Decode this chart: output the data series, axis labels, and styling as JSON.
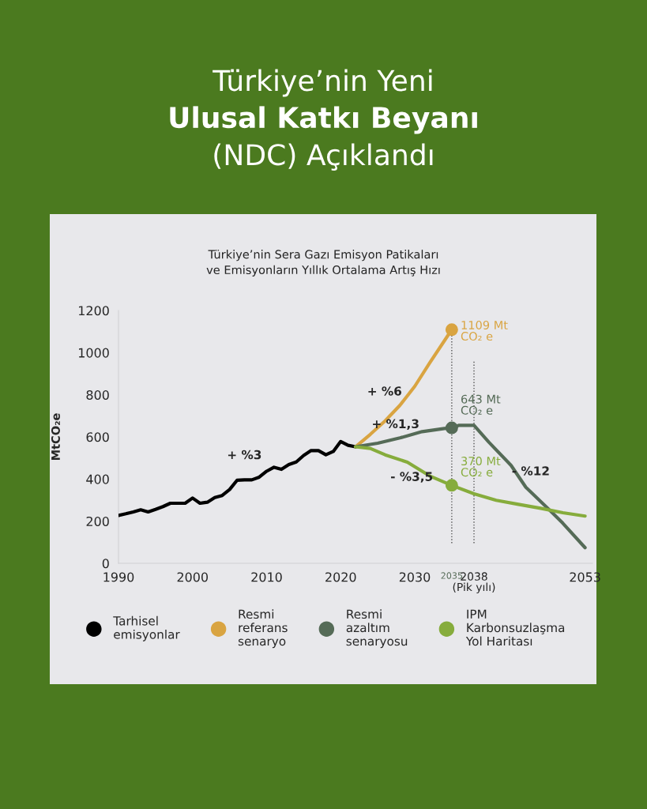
{
  "chart_data": {
    "type": "line",
    "title": "Türkiye’nin Yeni\nUlusal Katkı Beyanı\n(NDC) Açıklandı",
    "subtitle": "Türkiye’nin Sera Gazı Emisyon Patikaları\nve Emisyonların Yıllık Ortalama Artış Hızı",
    "ylabel": "MtCO₂e",
    "xlim": [
      1990,
      2054
    ],
    "ylim": [
      0,
      1200
    ],
    "xticks": [
      1990,
      2000,
      2010,
      2020,
      2030,
      2035,
      {
        "value": 2038,
        "label": "2038\n(Pik yılı)"
      },
      2053
    ],
    "yticks": [
      0,
      200,
      400,
      600,
      800,
      1000,
      1200
    ],
    "grid": false,
    "legend": "bottom",
    "line_style": "solid",
    "series": [
      {
        "name": "Tarhisel\nemisyonlar",
        "color": "#000000",
        "x": [
          1990,
          1991,
          1992,
          1993,
          1994,
          1995,
          1996,
          1997,
          1998,
          1999,
          2000,
          2001,
          2002,
          2003,
          2004,
          2005,
          2006,
          2007,
          2008,
          2009,
          2010,
          2011,
          2012,
          2013,
          2014,
          2015,
          2016,
          2017,
          2018,
          2019,
          2020,
          2021,
          2022
        ],
        "values": [
          227,
          235,
          244,
          254,
          244,
          256,
          269,
          285,
          285,
          285,
          310,
          285,
          290,
          312,
          322,
          350,
          394,
          396,
          396,
          409,
          437,
          456,
          446,
          469,
          481,
          512,
          535,
          535,
          515,
          531,
          578,
          560,
          553
        ]
      },
      {
        "name": "Resmi\nreferans\nsenaryo",
        "color": "#d9a441",
        "x": [
          2022,
          2024,
          2026,
          2028,
          2030,
          2032,
          2035
        ],
        "values": [
          553,
          612,
          676,
          750,
          840,
          950,
          1109
        ]
      },
      {
        "name": "Resmi\nazaltım\nsenaryosu",
        "color": "#556b57",
        "x": [
          2022,
          2025,
          2028,
          2031,
          2034,
          2035,
          2036,
          2038,
          2040,
          2043,
          2045,
          2048,
          2050,
          2053
        ],
        "values": [
          553,
          570,
          595,
          625,
          640,
          643,
          655,
          655,
          575,
          465,
          361,
          260,
          190,
          74
        ]
      },
      {
        "name": "IPM\nKarbonsuzlaşma\nYol Haritası",
        "color": "#86ac3c",
        "x": [
          2022,
          2024,
          2026,
          2029,
          2032,
          2035,
          2038,
          2041,
          2044,
          2047,
          2050,
          2053
        ],
        "values": [
          553,
          545,
          515,
          480,
          415,
          370,
          330,
          299,
          280,
          261,
          240,
          224
        ]
      },
      {
        "type": "scatter",
        "x": [
          2035,
          2035,
          2035
        ],
        "values": [
          1109,
          643,
          370
        ],
        "colors": [
          "#d9a441",
          "#556b57",
          "#86ac3c"
        ]
      }
    ],
    "ref_lines": [
      {
        "axis": "x",
        "value": 2035,
        "color": "#555555",
        "line_style": "dotted"
      },
      {
        "axis": "x",
        "value": 2038,
        "color": "#555555",
        "line_style": "dotted"
      }
    ],
    "annotations": [
      {
        "text": "+ %3",
        "x": 2007,
        "y": 396
      },
      {
        "text": "+ %6",
        "x": 2028,
        "y": 750
      },
      {
        "text": "+ %1,3",
        "x": 2028,
        "y": 595
      },
      {
        "text": "- %3,5",
        "x": 2029,
        "y": 480
      },
      {
        "text": "- %12",
        "x": 2043,
        "y": 465
      },
      {
        "text": "1109 Mt\nCO₂ e",
        "x": 2035,
        "y": 1109
      },
      {
        "text": "643 Mt\nCO₂ e",
        "x": 2035,
        "y": 643
      },
      {
        "text": "370 Mt\nCO₂ e",
        "x": 2035,
        "y": 370
      }
    ]
  }
}
